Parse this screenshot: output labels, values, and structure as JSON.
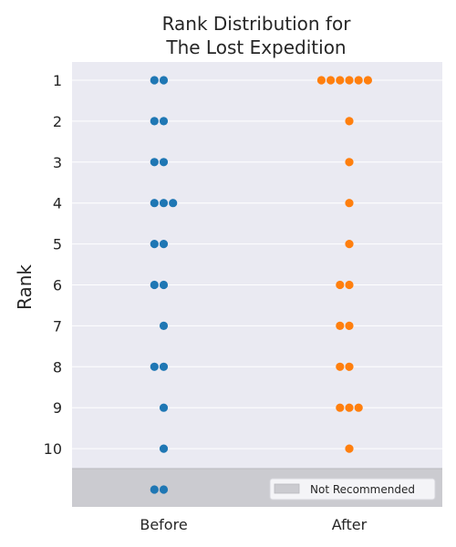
{
  "chart_data": {
    "type": "swarm",
    "title_lines": [
      "Rank Distribution for",
      "The Lost Expedition"
    ],
    "ylabel": "Rank",
    "categories": [
      "Before",
      "After"
    ],
    "rank_ticks": [
      "1",
      "2",
      "3",
      "4",
      "5",
      "6",
      "7",
      "8",
      "9",
      "10"
    ],
    "extra_row_label": "Not Recommended",
    "legend_label": "Not Recommended",
    "series": [
      {
        "name": "Before",
        "color": "#1f77b4",
        "counts": [
          {
            "rank": 1,
            "count": 2
          },
          {
            "rank": 2,
            "count": 2
          },
          {
            "rank": 3,
            "count": 2
          },
          {
            "rank": 4,
            "count": 3
          },
          {
            "rank": 5,
            "count": 2
          },
          {
            "rank": 6,
            "count": 2
          },
          {
            "rank": 7,
            "count": 1
          },
          {
            "rank": 8,
            "count": 2
          },
          {
            "rank": 9,
            "count": 1
          },
          {
            "rank": 10,
            "count": 1
          },
          {
            "rank": "Not Recommended",
            "count": 2
          }
        ]
      },
      {
        "name": "After",
        "color": "#ff7f0e",
        "counts": [
          {
            "rank": 1,
            "count": 6
          },
          {
            "rank": 2,
            "count": 1
          },
          {
            "rank": 3,
            "count": 1
          },
          {
            "rank": 4,
            "count": 1
          },
          {
            "rank": 5,
            "count": 1
          },
          {
            "rank": 6,
            "count": 2
          },
          {
            "rank": 7,
            "count": 2
          },
          {
            "rank": 8,
            "count": 2
          },
          {
            "rank": 9,
            "count": 3
          },
          {
            "rank": 10,
            "count": 1
          },
          {
            "rank": "Not Recommended",
            "count": 0
          }
        ]
      }
    ],
    "colors": {
      "plot_background": "#eaeaf2",
      "not_recommended_band": "#cbcbd0",
      "grid": "#ffffff",
      "text": "#262626"
    }
  }
}
